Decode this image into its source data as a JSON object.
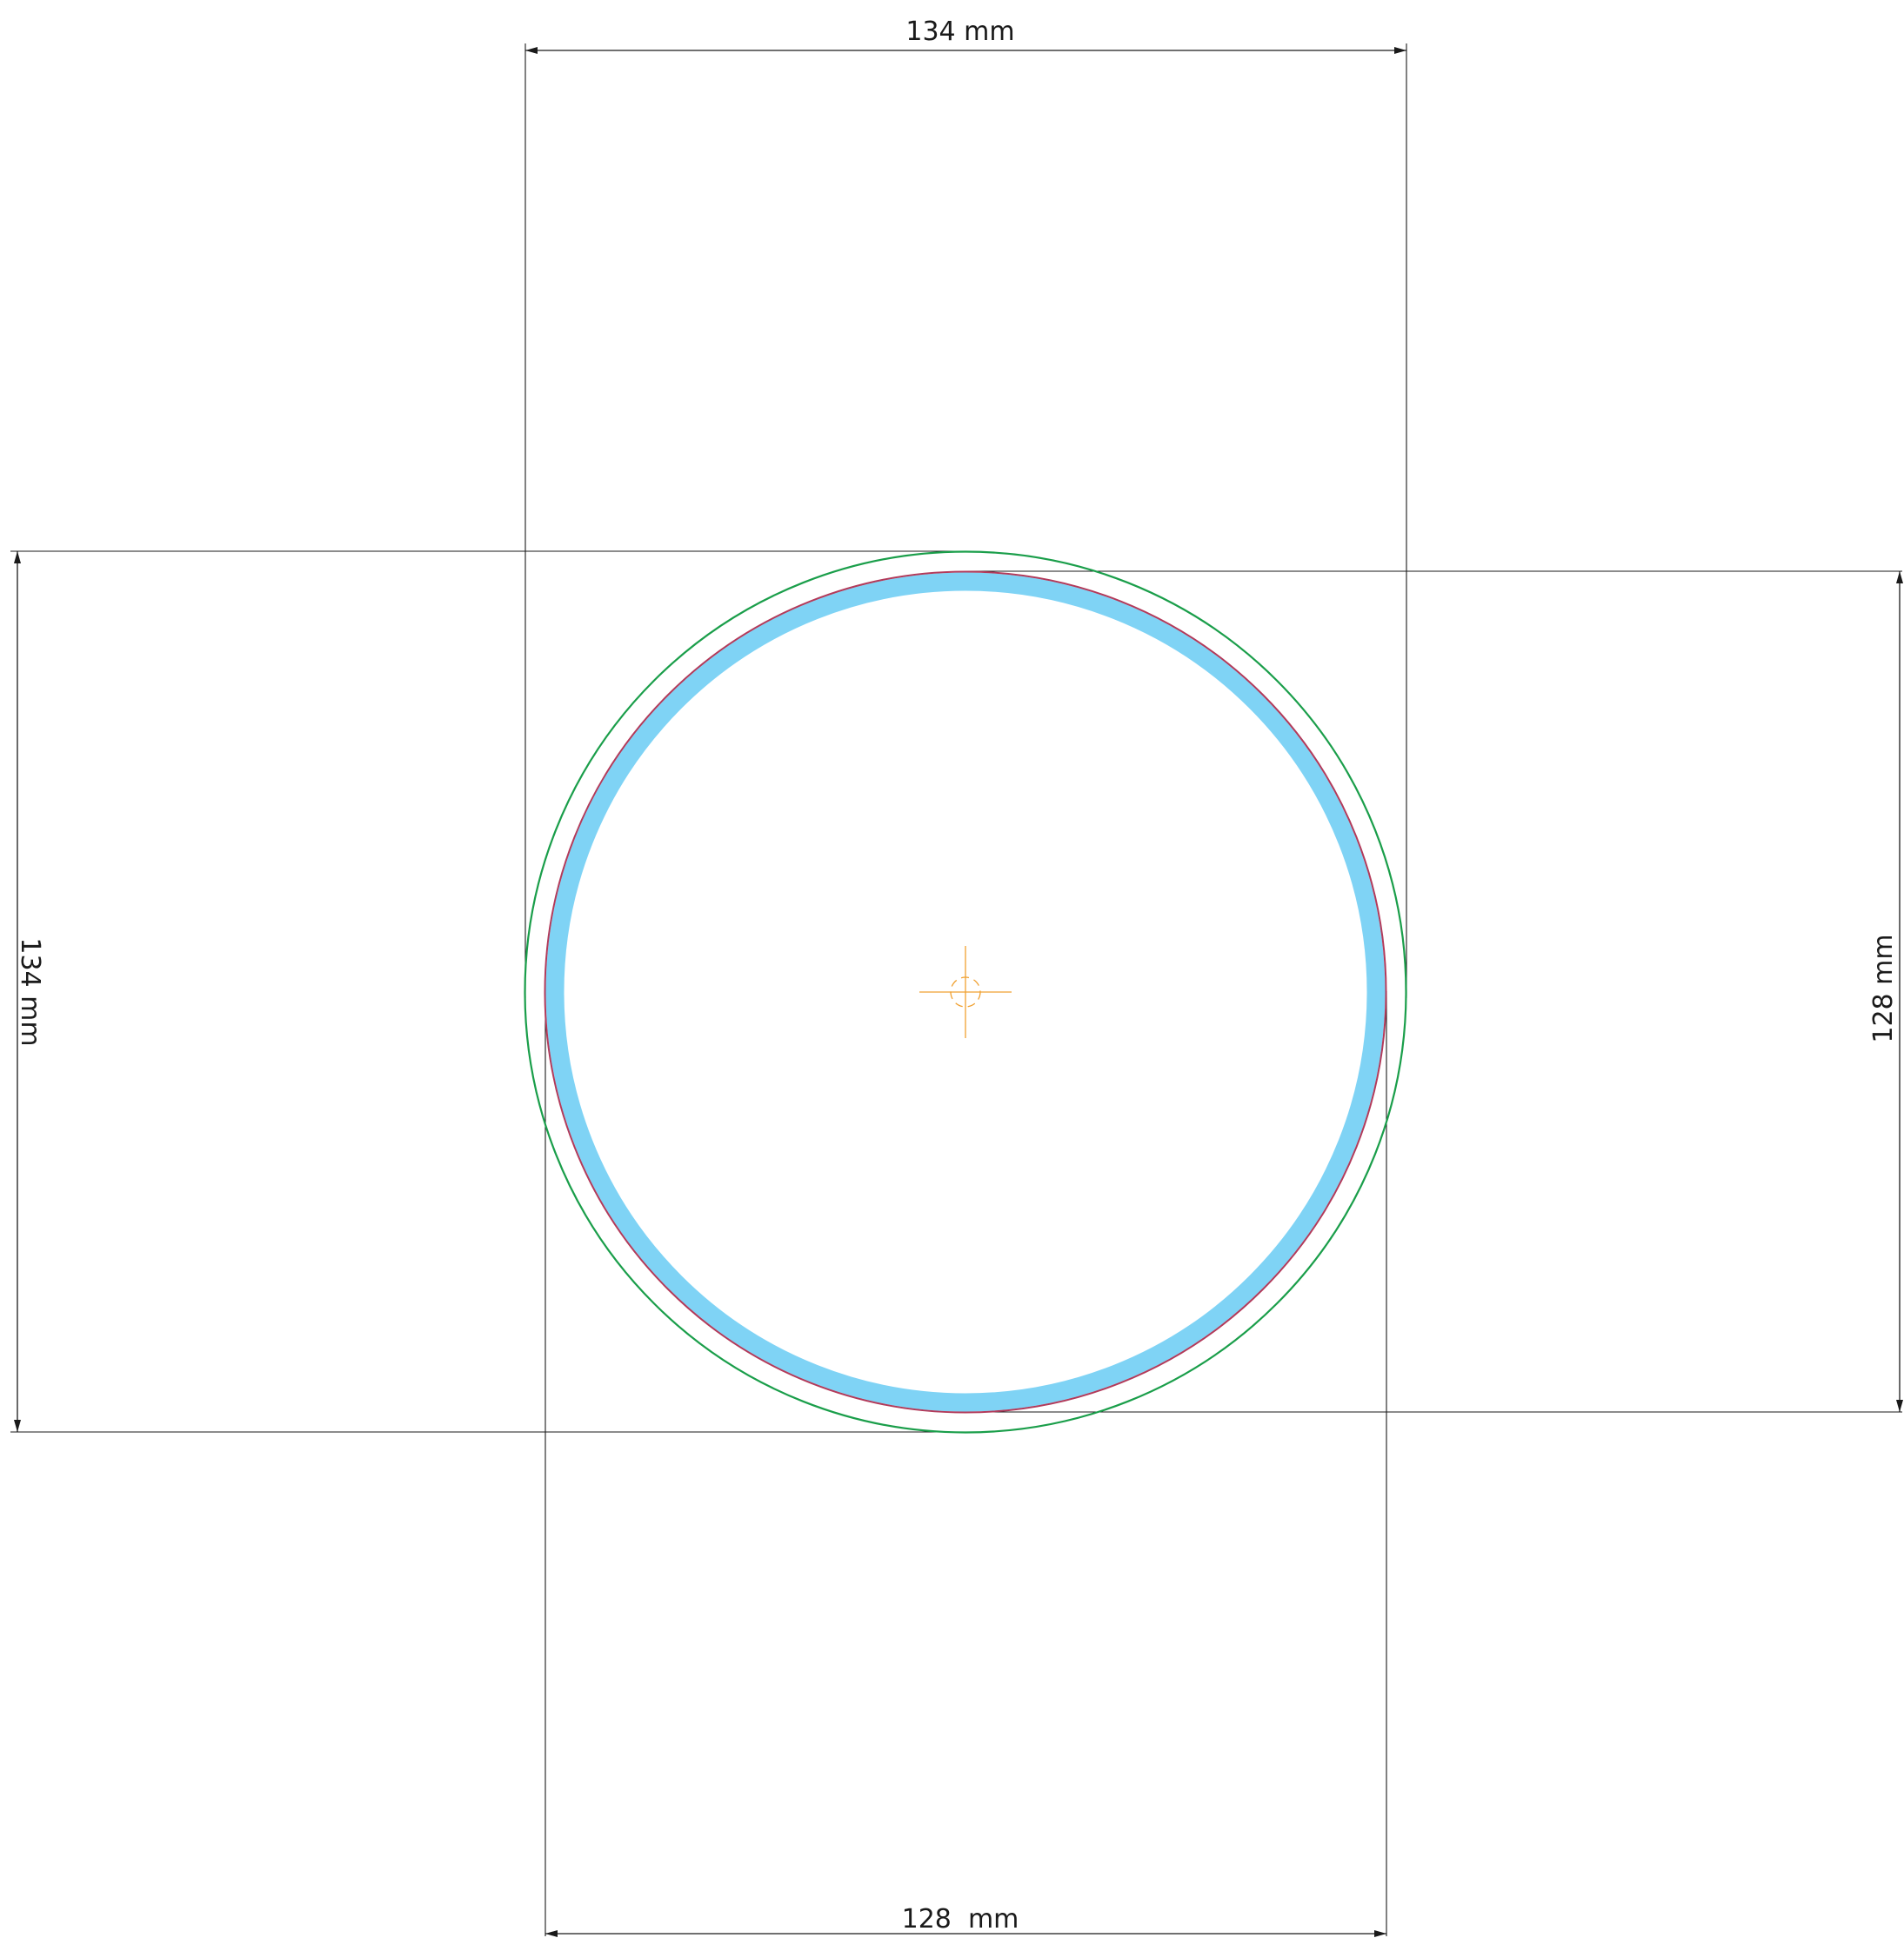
{
  "dimensions": {
    "top_width": "134 mm",
    "bottom_width": "128  mm",
    "left_height": "134 mm",
    "right_height": "128 mm"
  },
  "colors": {
    "outer_circle": "#1a9e4a",
    "cut_circle": "#b23a5a",
    "safe_band": "#7fd3f5",
    "center_mark": "#f0a030",
    "dimension_lines": "#1a1a1a",
    "background": "#ffffff"
  },
  "icons": {
    "center_mark": "crosshair-icon"
  }
}
